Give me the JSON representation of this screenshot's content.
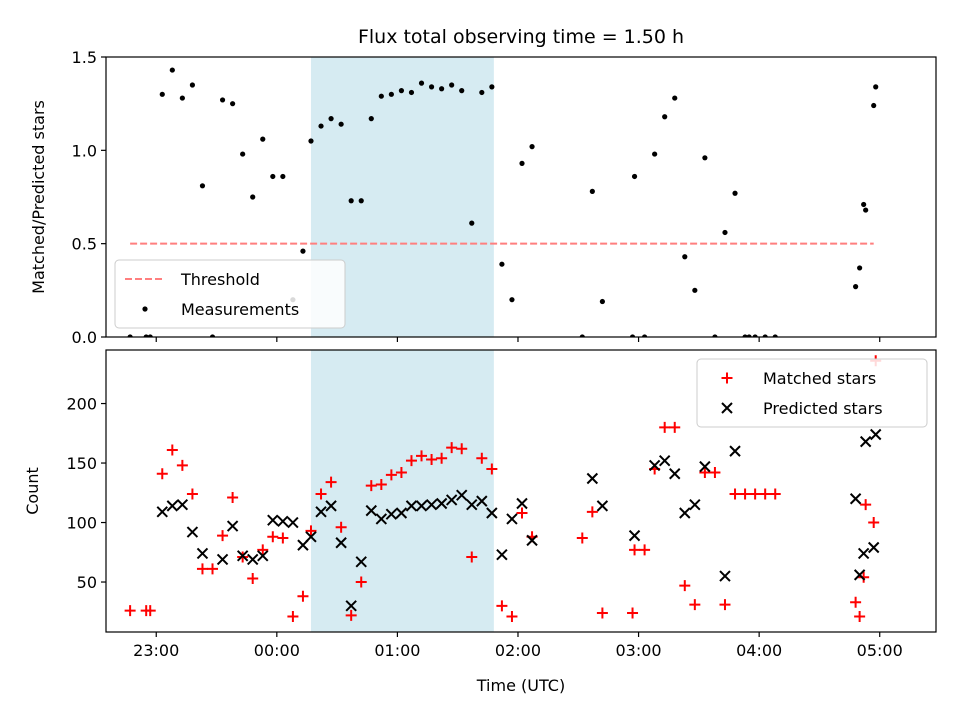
{
  "chart_data": [
    {
      "type": "scatter",
      "title": "Flux total observing time = 1.50 h",
      "xlabel": "",
      "ylabel": "Matched/Predicted stars",
      "x_unit": "hours (UTC)",
      "xlim": [
        "22:35",
        "05:28"
      ],
      "ylim": [
        0,
        1.5
      ],
      "yticks": [
        "0.0",
        "0.5",
        "1.0",
        "1.5"
      ],
      "xticks": [
        "23:00",
        "00:00",
        "01:00",
        "02:00",
        "03:00",
        "04:00",
        "05:00"
      ],
      "xticklabels_visible": false,
      "highlight_span": [
        "00:17",
        "01:48"
      ],
      "threshold": {
        "name": "Threshold",
        "value": 0.5,
        "x_range": [
          "22:47",
          "04:57"
        ],
        "color": "#ff7f7f",
        "style": "dashed"
      },
      "legend": {
        "position": "lower-left",
        "entries": [
          "Threshold",
          "Measurements"
        ]
      },
      "series": [
        {
          "name": "Measurements",
          "color": "#000000",
          "marker": "dot",
          "points": [
            [
              "22:47",
              0.0
            ],
            [
              "22:55",
              0.0
            ],
            [
              "22:57",
              0.0
            ],
            [
              "23:03",
              1.3
            ],
            [
              "23:08",
              1.43
            ],
            [
              "23:13",
              1.28
            ],
            [
              "23:18",
              1.35
            ],
            [
              "23:23",
              0.81
            ],
            [
              "23:28",
              0.0
            ],
            [
              "23:33",
              1.27
            ],
            [
              "23:38",
              1.25
            ],
            [
              "23:43",
              0.98
            ],
            [
              "23:48",
              0.75
            ],
            [
              "23:53",
              1.06
            ],
            [
              "23:58",
              0.86
            ],
            [
              "00:03",
              0.86
            ],
            [
              "00:08",
              0.2
            ],
            [
              "00:13",
              0.46
            ],
            [
              "00:17",
              1.05
            ],
            [
              "00:22",
              1.13
            ],
            [
              "00:27",
              1.17
            ],
            [
              "00:32",
              1.14
            ],
            [
              "00:37",
              0.73
            ],
            [
              "00:42",
              0.73
            ],
            [
              "00:47",
              1.17
            ],
            [
              "00:52",
              1.29
            ],
            [
              "00:57",
              1.3
            ],
            [
              "01:02",
              1.32
            ],
            [
              "01:07",
              1.31
            ],
            [
              "01:12",
              1.36
            ],
            [
              "01:17",
              1.34
            ],
            [
              "01:22",
              1.33
            ],
            [
              "01:27",
              1.35
            ],
            [
              "01:32",
              1.32
            ],
            [
              "01:37",
              0.61
            ],
            [
              "01:42",
              1.31
            ],
            [
              "01:47",
              1.34
            ],
            [
              "01:52",
              0.39
            ],
            [
              "01:57",
              0.2
            ],
            [
              "02:02",
              0.93
            ],
            [
              "02:07",
              1.02
            ],
            [
              "02:32",
              0.0
            ],
            [
              "02:37",
              0.78
            ],
            [
              "02:42",
              0.19
            ],
            [
              "02:57",
              0.0
            ],
            [
              "02:58",
              0.86
            ],
            [
              "03:03",
              0.0
            ],
            [
              "03:08",
              0.98
            ],
            [
              "03:13",
              1.18
            ],
            [
              "03:18",
              1.28
            ],
            [
              "03:23",
              0.43
            ],
            [
              "03:28",
              0.25
            ],
            [
              "03:33",
              0.96
            ],
            [
              "03:38",
              0.0
            ],
            [
              "03:43",
              0.56
            ],
            [
              "03:48",
              0.77
            ],
            [
              "03:53",
              0.0
            ],
            [
              "03:55",
              0.0
            ],
            [
              "03:58",
              0.0
            ],
            [
              "04:03",
              0.0
            ],
            [
              "04:08",
              0.0
            ],
            [
              "04:48",
              0.27
            ],
            [
              "04:53",
              0.68
            ],
            [
              "04:58",
              1.34
            ],
            [
              "04:50",
              0.37
            ],
            [
              "04:52",
              0.71
            ],
            [
              "04:57",
              1.24
            ]
          ]
        }
      ]
    },
    {
      "type": "scatter",
      "title": "",
      "xlabel": "Time (UTC)",
      "ylabel": "Count",
      "x_unit": "hours (UTC)",
      "xlim": [
        "22:35",
        "05:28"
      ],
      "ylim": [
        8,
        245
      ],
      "yticks": [
        "50",
        "100",
        "150",
        "200"
      ],
      "xticks": [
        "23:00",
        "00:00",
        "01:00",
        "02:00",
        "03:00",
        "04:00",
        "05:00"
      ],
      "highlight_span": [
        "00:17",
        "01:48"
      ],
      "legend": {
        "position": "upper-right",
        "entries": [
          "Matched stars",
          "Predicted stars"
        ]
      },
      "series": [
        {
          "name": "Matched stars",
          "color": "#ff0000",
          "marker": "plus",
          "points": [
            [
              "22:47",
              26
            ],
            [
              "22:55",
              26
            ],
            [
              "22:57",
              26
            ],
            [
              "23:03",
              141
            ],
            [
              "23:08",
              161
            ],
            [
              "23:13",
              148
            ],
            [
              "23:18",
              124
            ],
            [
              "23:23",
              61
            ],
            [
              "23:28",
              61
            ],
            [
              "23:33",
              89
            ],
            [
              "23:38",
              121
            ],
            [
              "23:43",
              71
            ],
            [
              "23:48",
              53
            ],
            [
              "23:53",
              77
            ],
            [
              "23:58",
              88
            ],
            [
              "00:03",
              87
            ],
            [
              "00:08",
              21
            ],
            [
              "00:13",
              38
            ],
            [
              "00:17",
              93
            ],
            [
              "00:22",
              124
            ],
            [
              "00:27",
              134
            ],
            [
              "00:32",
              96
            ],
            [
              "00:37",
              22
            ],
            [
              "00:42",
              50
            ],
            [
              "00:47",
              131
            ],
            [
              "00:52",
              132
            ],
            [
              "00:57",
              140
            ],
            [
              "01:02",
              142
            ],
            [
              "01:07",
              152
            ],
            [
              "01:12",
              156
            ],
            [
              "01:17",
              153
            ],
            [
              "01:22",
              154
            ],
            [
              "01:27",
              163
            ],
            [
              "01:32",
              162
            ],
            [
              "01:37",
              71
            ],
            [
              "01:42",
              154
            ],
            [
              "01:47",
              145
            ],
            [
              "01:52",
              30
            ],
            [
              "01:57",
              21
            ],
            [
              "02:02",
              108
            ],
            [
              "02:07",
              88
            ],
            [
              "02:32",
              87
            ],
            [
              "02:37",
              109
            ],
            [
              "02:42",
              24
            ],
            [
              "02:57",
              24
            ],
            [
              "02:58",
              77
            ],
            [
              "03:03",
              77
            ],
            [
              "03:08",
              145
            ],
            [
              "03:13",
              180
            ],
            [
              "03:18",
              180
            ],
            [
              "03:23",
              47
            ],
            [
              "03:28",
              31
            ],
            [
              "03:33",
              142
            ],
            [
              "03:38",
              142
            ],
            [
              "03:43",
              31
            ],
            [
              "03:48",
              124
            ],
            [
              "03:53",
              124
            ],
            [
              "03:58",
              124
            ],
            [
              "04:03",
              124
            ],
            [
              "04:08",
              124
            ],
            [
              "04:48",
              33
            ],
            [
              "04:53",
              115
            ],
            [
              "04:58",
              236
            ],
            [
              "04:50",
              21
            ],
            [
              "04:52",
              54
            ],
            [
              "04:57",
              100
            ]
          ]
        },
        {
          "name": "Predicted stars",
          "color": "#000000",
          "marker": "x",
          "points": [
            [
              "23:03",
              109
            ],
            [
              "23:08",
              114
            ],
            [
              "23:13",
              115
            ],
            [
              "23:18",
              92
            ],
            [
              "23:23",
              74
            ],
            [
              "23:33",
              69
            ],
            [
              "23:38",
              97
            ],
            [
              "23:43",
              72
            ],
            [
              "23:48",
              69
            ],
            [
              "23:53",
              72
            ],
            [
              "23:58",
              102
            ],
            [
              "00:03",
              101
            ],
            [
              "00:08",
              100
            ],
            [
              "00:13",
              81
            ],
            [
              "00:17",
              88
            ],
            [
              "00:22",
              109
            ],
            [
              "00:27",
              114
            ],
            [
              "00:32",
              83
            ],
            [
              "00:37",
              30
            ],
            [
              "00:42",
              67
            ],
            [
              "00:47",
              110
            ],
            [
              "00:52",
              103
            ],
            [
              "00:57",
              107
            ],
            [
              "01:02",
              108
            ],
            [
              "01:07",
              114
            ],
            [
              "01:12",
              114
            ],
            [
              "01:17",
              115
            ],
            [
              "01:22",
              116
            ],
            [
              "01:27",
              119
            ],
            [
              "01:32",
              123
            ],
            [
              "01:37",
              115
            ],
            [
              "01:42",
              118
            ],
            [
              "01:47",
              108
            ],
            [
              "01:52",
              73
            ],
            [
              "01:57",
              103
            ],
            [
              "02:02",
              116
            ],
            [
              "02:07",
              85
            ],
            [
              "02:37",
              137
            ],
            [
              "02:42",
              114
            ],
            [
              "02:58",
              89
            ],
            [
              "03:08",
              148
            ],
            [
              "03:13",
              152
            ],
            [
              "03:18",
              141
            ],
            [
              "03:23",
              108
            ],
            [
              "03:28",
              115
            ],
            [
              "03:33",
              147
            ],
            [
              "03:43",
              55
            ],
            [
              "03:48",
              160
            ],
            [
              "04:48",
              120
            ],
            [
              "04:53",
              168
            ],
            [
              "04:58",
              174
            ],
            [
              "04:50",
              56
            ],
            [
              "04:52",
              74
            ],
            [
              "04:57",
              79
            ]
          ]
        }
      ]
    }
  ]
}
